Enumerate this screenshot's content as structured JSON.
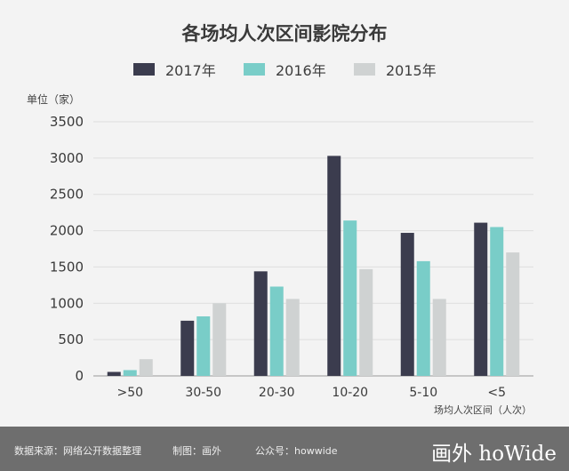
{
  "chart_data": {
    "type": "bar",
    "title": "各场均人次区间影院分布",
    "ylabel": "单位（家）",
    "xlabel": "场均人次区间（人次）",
    "categories": [
      ">50",
      "30-50",
      "20-30",
      "10-20",
      "5-10",
      "<5"
    ],
    "series": [
      {
        "name": "2017年",
        "color": "#3b3c4e",
        "values": [
          55,
          760,
          1440,
          3030,
          1970,
          2110
        ]
      },
      {
        "name": "2016年",
        "color": "#79cdc8",
        "values": [
          80,
          820,
          1230,
          2140,
          1580,
          2050
        ]
      },
      {
        "name": "2015年",
        "color": "#cfd2d2",
        "values": [
          230,
          1000,
          1060,
          1470,
          1060,
          1700
        ]
      }
    ],
    "ylim": [
      0,
      3500
    ],
    "yticks": [
      0,
      500,
      1000,
      1500,
      2000,
      2500,
      3000,
      3500
    ],
    "grid": true,
    "legend_position": "top-center"
  },
  "footer": {
    "source": "数据来源：网络公开数据整理",
    "made_by": "制图：画外",
    "account": "公众号：howwide",
    "logo": "画外 hoWide"
  }
}
